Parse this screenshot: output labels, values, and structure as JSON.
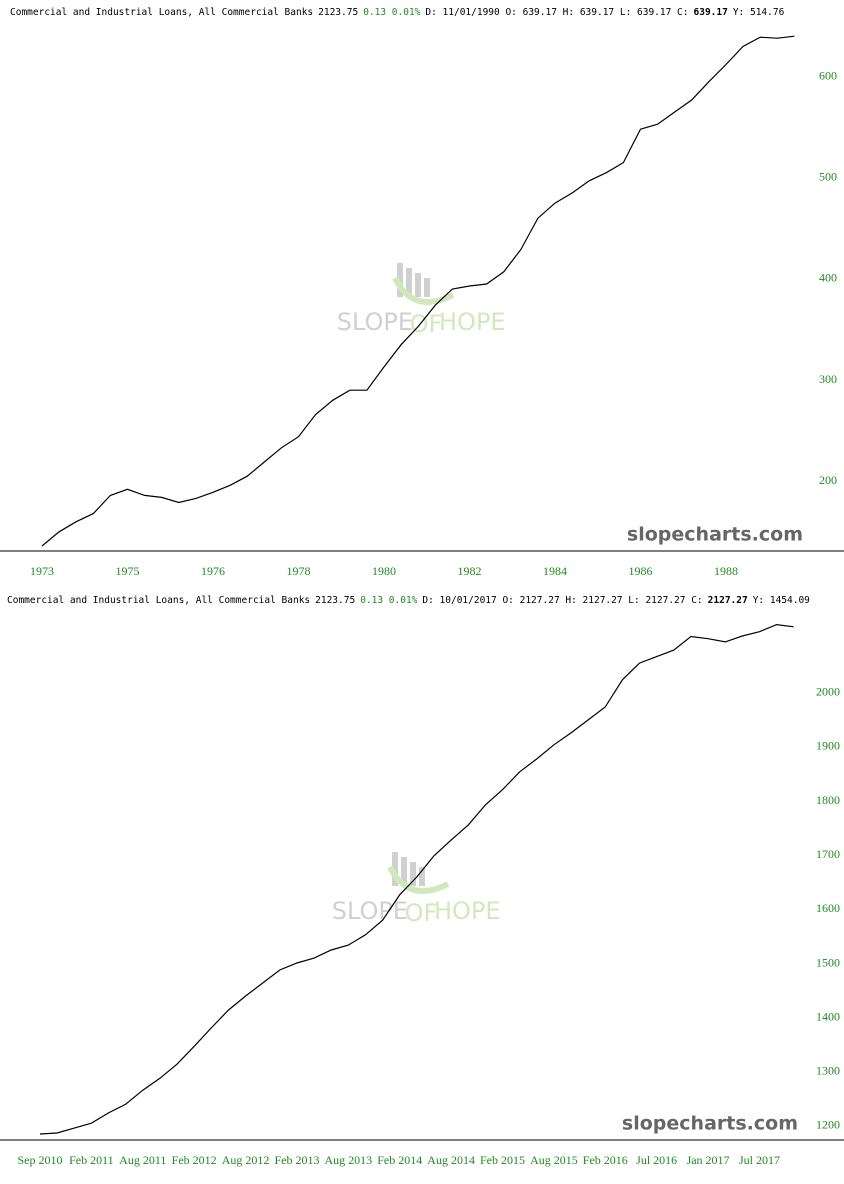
{
  "chart_data": [
    {
      "type": "line",
      "header": {
        "title": "Commercial and Industrial Loans, All Commercial Banks",
        "last": "2123.75",
        "change": "0.13 0.01%",
        "info": "D: 11/01/1990 O: 639.17 H: 639.17 L: 639.17 C:",
        "close": "639.17",
        "extra": "Y: 514.76"
      },
      "watermark": "slopecharts.com",
      "logo": [
        "SLOPE",
        "OF",
        "HOPE"
      ],
      "categories": [
        "1973",
        null,
        null,
        null,
        null,
        "1975",
        null,
        null,
        null,
        null,
        "1976",
        null,
        null,
        null,
        null,
        "1978",
        null,
        null,
        null,
        null,
        "1980",
        null,
        null,
        null,
        null,
        "1982",
        null,
        null,
        null,
        null,
        "1984",
        null,
        null,
        null,
        null,
        "1986",
        null,
        null,
        null,
        null,
        "1988",
        null,
        null,
        null,
        null
      ],
      "values": [
        136,
        150,
        160,
        168,
        186,
        192,
        186,
        184,
        179,
        183,
        189,
        196,
        205,
        219,
        233,
        244,
        266,
        280,
        290,
        290,
        313,
        335,
        353,
        374,
        390,
        393,
        395,
        407,
        429,
        460,
        475,
        485,
        497,
        505,
        515,
        548,
        553,
        565,
        577,
        595,
        612,
        630,
        639,
        638,
        640
      ],
      "color": "#000000",
      "ylim": [
        132,
        656
      ],
      "yticks": [
        200,
        300,
        400,
        500,
        600
      ]
    },
    {
      "type": "line",
      "header": {
        "title": "Commercial and Industrial Loans, All Commercial Banks",
        "last": "2123.75",
        "change": "0.13 0.01%",
        "info": "D: 10/01/2017 O: 2127.27 H: 2127.27 L: 2127.27 C:",
        "close": "2127.27",
        "extra": "Y: 1454.09"
      },
      "watermark": "slopecharts.com",
      "logo": [
        "SLOPE",
        "OF",
        "HOPE"
      ],
      "categories": [
        "Sep 2010",
        null,
        null,
        "Feb 2011",
        null,
        null,
        "Aug 2011",
        null,
        null,
        "Feb 2012",
        null,
        null,
        "Aug 2012",
        null,
        null,
        "Feb 2013",
        null,
        null,
        "Aug 2013",
        null,
        null,
        "Feb 2014",
        null,
        null,
        "Aug 2014",
        null,
        null,
        "Feb 2015",
        null,
        null,
        "Aug 2015",
        null,
        null,
        "Feb 2016",
        null,
        null,
        "Jul 2016",
        null,
        null,
        "Jan 2017",
        null,
        null,
        "Jul 2017",
        null,
        null
      ],
      "values": [
        1185,
        1187,
        1196,
        1205,
        1224,
        1240,
        1266,
        1288,
        1314,
        1347,
        1381,
        1414,
        1440,
        1464,
        1488,
        1501,
        1510,
        1525,
        1534,
        1553,
        1580,
        1627,
        1660,
        1699,
        1728,
        1756,
        1793,
        1821,
        1854,
        1878,
        1904,
        1926,
        1950,
        1974,
        2024,
        2055,
        2067,
        2079,
        2104,
        2100,
        2094,
        2105,
        2113,
        2126,
        2122
      ],
      "color": "#000000",
      "ylim": [
        1174,
        2153
      ],
      "yticks": [
        1200,
        1300,
        1400,
        1500,
        1600,
        1700,
        1800,
        1900,
        2000
      ]
    }
  ]
}
